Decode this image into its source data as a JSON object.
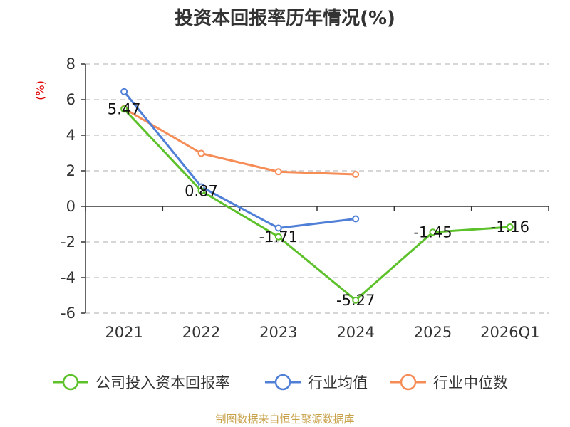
{
  "colors": {
    "company": "#5cc12a",
    "industry_avg": "#4f7fd6",
    "industry_median": "#f68c56",
    "grid": "#c8c8c8",
    "axis": "#333333",
    "unit": "#e00000",
    "source": "#c8a24a"
  },
  "source": "制图数据来自恒生聚源数据库",
  "chart_data": {
    "type": "line",
    "title": "投资本回报率历年情况(%)",
    "ylabel": "(%)",
    "xlabel": "",
    "ylim": [
      -6,
      8
    ],
    "yticks": [
      8,
      6,
      4,
      2,
      0,
      -2,
      -4,
      -6
    ],
    "ytick_labels": [
      "8",
      "6",
      "4",
      "2",
      "0",
      "-2",
      "-4",
      "-6"
    ],
    "categories": [
      "2021",
      "2022",
      "2023",
      "2024",
      "2025",
      "2026Q1"
    ],
    "grid": true,
    "legend_position": "bottom",
    "series": [
      {
        "name": "公司投入资本回报率",
        "color_key": "company",
        "values": [
          5.47,
          0.87,
          -1.71,
          -5.27,
          -1.45,
          -1.16
        ],
        "labels": [
          "5.47",
          "0.87",
          "-1.71",
          "-5.27",
          "-1.45",
          "-1.16"
        ]
      },
      {
        "name": "行业均值",
        "color_key": "industry_avg",
        "values": [
          6.45,
          1.1,
          -1.22,
          -0.7,
          null,
          null
        ]
      },
      {
        "name": "行业中位数",
        "color_key": "industry_median",
        "values": [
          5.5,
          2.98,
          1.95,
          1.8,
          null,
          null
        ]
      }
    ]
  }
}
